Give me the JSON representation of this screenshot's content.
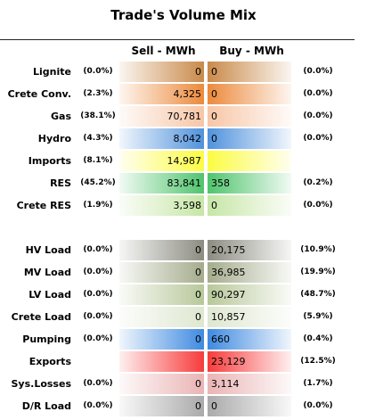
{
  "title": "Trade's Volume Mix",
  "headers": {
    "sell": "Sell - MWh",
    "buy": "Buy - MWh"
  },
  "chart_data": {
    "type": "table",
    "title": "Trade's Volume Mix",
    "columns": [
      "Sell - MWh",
      "Buy - MWh"
    ],
    "rows": [
      {
        "category": "Lignite",
        "sell_pct": "(0.0%)",
        "sell": "0",
        "buy": "0",
        "buy_pct": "(0.0%)",
        "sell_color": "#c98a4a",
        "buy_color": "#c98a4a"
      },
      {
        "category": "Crete Conv.",
        "sell_pct": "(2.3%)",
        "sell": "4,325",
        "buy": "0",
        "buy_pct": "(0.0%)",
        "sell_color": "#ec8a3c",
        "buy_color": "#ec8a3c"
      },
      {
        "category": "Gas",
        "sell_pct": "(38.1%)",
        "sell": "70,781",
        "buy": "0",
        "buy_pct": "(0.0%)",
        "sell_color": "#f7c6a6",
        "buy_color": "#f7c6a6"
      },
      {
        "category": "Hydro",
        "sell_pct": "(4.3%)",
        "sell": "8,042",
        "buy": "0",
        "buy_pct": "(0.0%)",
        "sell_color": "#4f92dc",
        "buy_color": "#4f92dc"
      },
      {
        "category": "Imports",
        "sell_pct": "(8.1%)",
        "sell": "14,987",
        "buy": "",
        "buy_pct": "",
        "sell_color": "#fbfb42",
        "buy_color": "#fbfb42"
      },
      {
        "category": "RES",
        "sell_pct": "(45.2%)",
        "sell": "83,841",
        "buy": "358",
        "buy_pct": "(0.2%)",
        "sell_color": "#4fc46c",
        "buy_color": "#4fc46c"
      },
      {
        "category": "Crete RES",
        "sell_pct": "(1.9%)",
        "sell": "3,598",
        "buy": "0",
        "buy_pct": "(0.0%)",
        "sell_color": "#c6e6a6",
        "buy_color": "#c6e6a6"
      },
      {
        "category": "",
        "sell_pct": "",
        "sell": "",
        "buy": "",
        "buy_pct": "",
        "sell_color": "#ffffff",
        "buy_color": "#ffffff"
      },
      {
        "category": "HV Load",
        "sell_pct": "(0.0%)",
        "sell": "0",
        "buy": "20,175",
        "buy_pct": "(10.9%)",
        "sell_color": "#8c8c82",
        "buy_color": "#8c8c82"
      },
      {
        "category": "MV Load",
        "sell_pct": "(0.0%)",
        "sell": "0",
        "buy": "36,985",
        "buy_pct": "(19.9%)",
        "sell_color": "#a4ac8c",
        "buy_color": "#a4ac8c"
      },
      {
        "category": "LV Load",
        "sell_pct": "(0.0%)",
        "sell": "0",
        "buy": "90,297",
        "buy_pct": "(48.7%)",
        "sell_color": "#b8c89a",
        "buy_color": "#b8c89a"
      },
      {
        "category": "Crete Load",
        "sell_pct": "(0.0%)",
        "sell": "0",
        "buy": "10,857",
        "buy_pct": "(5.9%)",
        "sell_color": "#dee7d0",
        "buy_color": "#dee7d0"
      },
      {
        "category": "Pumping",
        "sell_pct": "(0.0%)",
        "sell": "0",
        "buy": "660",
        "buy_pct": "(0.4%)",
        "sell_color": "#3f8ae0",
        "buy_color": "#3f8ae0"
      },
      {
        "category": "Exports",
        "sell_pct": "",
        "sell": "",
        "buy": "23,129",
        "buy_pct": "(12.5%)",
        "sell_color": "#f73b3b",
        "buy_color": "#f73b3b"
      },
      {
        "category": "Sys.Losses",
        "sell_pct": "(0.0%)",
        "sell": "0",
        "buy": "3,114",
        "buy_pct": "(1.7%)",
        "sell_color": "#eab4b4",
        "buy_color": "#eab4b4"
      },
      {
        "category": "D/R Load",
        "sell_pct": "(0.0%)",
        "sell": "0",
        "buy": "0",
        "buy_pct": "(0.0%)",
        "sell_color": "#aaaaaa",
        "buy_color": "#aaaaaa"
      }
    ]
  }
}
